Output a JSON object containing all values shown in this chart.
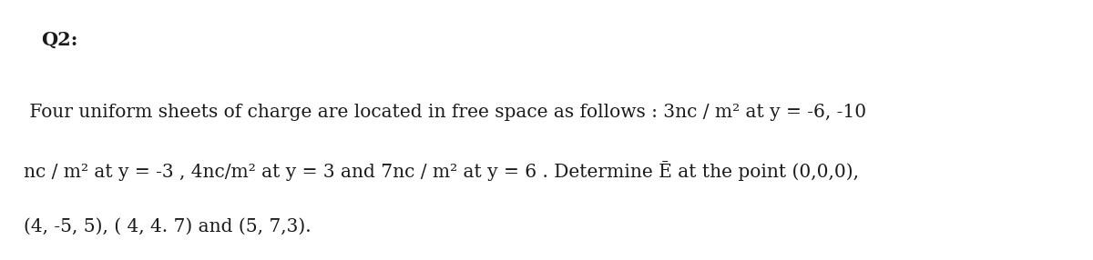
{
  "title": "Q2:",
  "title_fontsize": 15,
  "title_fontweight": "bold",
  "body_lines": [
    " Four uniform sheets of charge are located in free space as follows : 3nc / m² at y = -6, -10",
    "nc / m² at y = -3 , 4nc/m² at y = 3 and 7nc / m² at y = 6 . Determine Ē at the point (0,0,0),",
    "(4, -5, 5), ( 4, 4. 7) and (5, 7,3)."
  ],
  "body_fontsize": 14.5,
  "background_color": "#ffffff",
  "text_color": "#1a1a1a",
  "fig_width": 12.0,
  "fig_height": 2.86
}
